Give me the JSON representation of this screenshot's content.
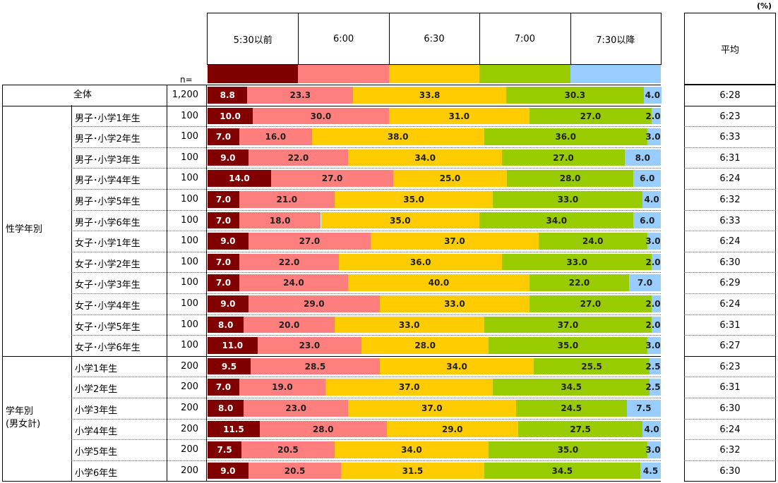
{
  "unit_label": "(%)",
  "n_label": "n=",
  "average_header": "平均",
  "group_labels": {
    "total": "全体",
    "gender_grade": "性学年別",
    "grade_line1": "学年別",
    "grade_line2": "(男女計)"
  },
  "colors": {
    "5:30以前": "#800000",
    "6:00": "#ff7f7f",
    "6:30": "#ffcc00",
    "7:00": "#99cc00",
    "7:30以降": "#99ccff"
  },
  "chart_data": {
    "type": "bar",
    "orientation": "horizontal",
    "stacked": true,
    "percent": true,
    "categories": [
      "5:30以前",
      "6:00",
      "6:30",
      "7:00",
      "7:30以降"
    ],
    "rows": [
      {
        "label": "全体",
        "n": "1,200",
        "values": [
          8.8,
          23.3,
          33.8,
          30.3,
          4.0
        ],
        "average": "6:28"
      },
      {
        "label": "男子･小学1年生",
        "n": "100",
        "values": [
          10.0,
          30.0,
          31.0,
          27.0,
          2.0
        ],
        "average": "6:23"
      },
      {
        "label": "男子･小学2年生",
        "n": "100",
        "values": [
          7.0,
          16.0,
          38.0,
          36.0,
          3.0
        ],
        "average": "6:33"
      },
      {
        "label": "男子･小学3年生",
        "n": "100",
        "values": [
          9.0,
          22.0,
          34.0,
          27.0,
          8.0
        ],
        "average": "6:31"
      },
      {
        "label": "男子･小学4年生",
        "n": "100",
        "values": [
          14.0,
          27.0,
          25.0,
          28.0,
          6.0
        ],
        "average": "6:24"
      },
      {
        "label": "男子･小学5年生",
        "n": "100",
        "values": [
          7.0,
          21.0,
          35.0,
          33.0,
          4.0
        ],
        "average": "6:32"
      },
      {
        "label": "男子･小学6年生",
        "n": "100",
        "values": [
          7.0,
          18.0,
          35.0,
          34.0,
          6.0
        ],
        "average": "6:33"
      },
      {
        "label": "女子･小学1年生",
        "n": "100",
        "values": [
          9.0,
          27.0,
          37.0,
          24.0,
          3.0
        ],
        "average": "6:24"
      },
      {
        "label": "女子･小学2年生",
        "n": "100",
        "values": [
          7.0,
          22.0,
          36.0,
          33.0,
          2.0
        ],
        "average": "6:30"
      },
      {
        "label": "女子･小学3年生",
        "n": "100",
        "values": [
          7.0,
          24.0,
          40.0,
          22.0,
          7.0
        ],
        "average": "6:29"
      },
      {
        "label": "女子･小学4年生",
        "n": "100",
        "values": [
          9.0,
          29.0,
          33.0,
          27.0,
          2.0
        ],
        "average": "6:24"
      },
      {
        "label": "女子･小学5年生",
        "n": "100",
        "values": [
          8.0,
          20.0,
          33.0,
          37.0,
          2.0
        ],
        "average": "6:31"
      },
      {
        "label": "女子･小学6年生",
        "n": "100",
        "values": [
          11.0,
          23.0,
          28.0,
          35.0,
          3.0
        ],
        "average": "6:27"
      },
      {
        "label": "小学1年生",
        "n": "200",
        "values": [
          9.5,
          28.5,
          34.0,
          25.5,
          2.5
        ],
        "average": "6:23"
      },
      {
        "label": "小学2年生",
        "n": "200",
        "values": [
          7.0,
          19.0,
          37.0,
          34.5,
          2.5
        ],
        "average": "6:31"
      },
      {
        "label": "小学3年生",
        "n": "200",
        "values": [
          8.0,
          23.0,
          37.0,
          24.5,
          7.5
        ],
        "average": "6:30"
      },
      {
        "label": "小学4年生",
        "n": "200",
        "values": [
          11.5,
          28.0,
          29.0,
          27.5,
          4.0
        ],
        "average": "6:24"
      },
      {
        "label": "小学5年生",
        "n": "200",
        "values": [
          7.5,
          20.5,
          34.0,
          35.0,
          3.0
        ],
        "average": "6:32"
      },
      {
        "label": "小学6年生",
        "n": "200",
        "values": [
          9.0,
          20.5,
          31.5,
          34.5,
          4.5
        ],
        "average": "6:30"
      }
    ]
  }
}
